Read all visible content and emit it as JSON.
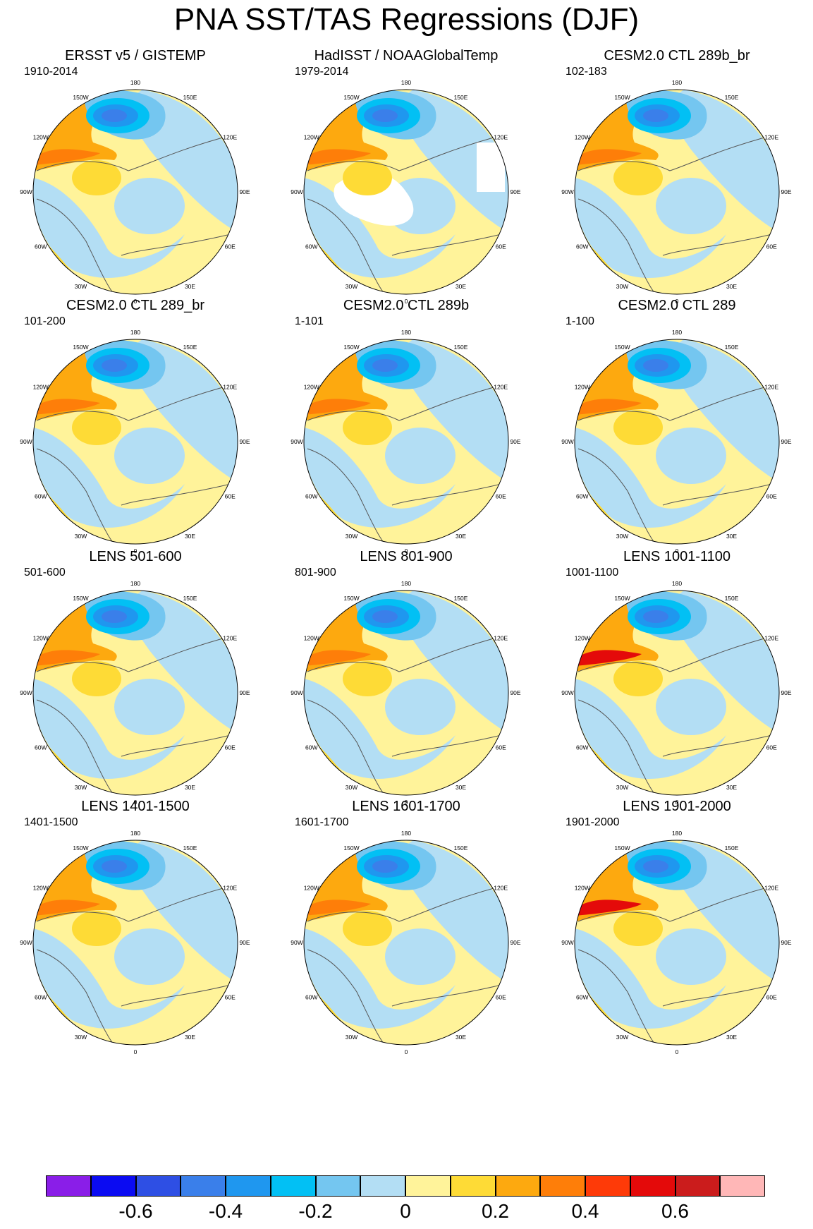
{
  "figure": {
    "title": "PNA SST/TAS Regressions (DJF)"
  },
  "colors": {
    "levels": [
      "#8a1ee8",
      "#0b0bf2",
      "#2e4fe4",
      "#3a7fea",
      "#1f97ef",
      "#02c0f4",
      "#74c6f0",
      "#b3def4",
      "#fff39a",
      "#fedb36",
      "#fda90f",
      "#fe7e09",
      "#fe3a08",
      "#e40a0a",
      "#cb1c1c",
      "#ffb7b7"
    ]
  },
  "colorbar": {
    "labels": [
      "-0.6",
      "-0.4",
      "-0.2",
      "0",
      "0.2",
      "0.4",
      "0.6"
    ]
  },
  "longitude_labels": [
    "180",
    "150E",
    "120E",
    "90E",
    "60E",
    "30E",
    "0",
    "30W",
    "60W",
    "90W",
    "120W",
    "150W"
  ],
  "panels": [
    {
      "title": "ERSST v5 / GISTEMP",
      "years": "1910-2014"
    },
    {
      "title": "HadISST / NOAAGlobalTemp",
      "years": "1979-2014"
    },
    {
      "title": "CESM2.0 CTL 289b_br",
      "years": "102-183"
    },
    {
      "title": "CESM2.0 CTL 289_br",
      "years": "101-200"
    },
    {
      "title": "CESM2.0 CTL 289b",
      "years": "1-101"
    },
    {
      "title": "CESM2.0 CTL 289",
      "years": "1-100"
    },
    {
      "title": "LENS 501-600",
      "years": "501-600"
    },
    {
      "title": "LENS 801-900",
      "years": "801-900"
    },
    {
      "title": "LENS 1001-1100",
      "years": "1001-1100"
    },
    {
      "title": "LENS 1401-1500",
      "years": "1401-1500"
    },
    {
      "title": "LENS 1601-1700",
      "years": "1601-1700"
    },
    {
      "title": "LENS 1901-2000",
      "years": "1901-2000"
    }
  ]
}
